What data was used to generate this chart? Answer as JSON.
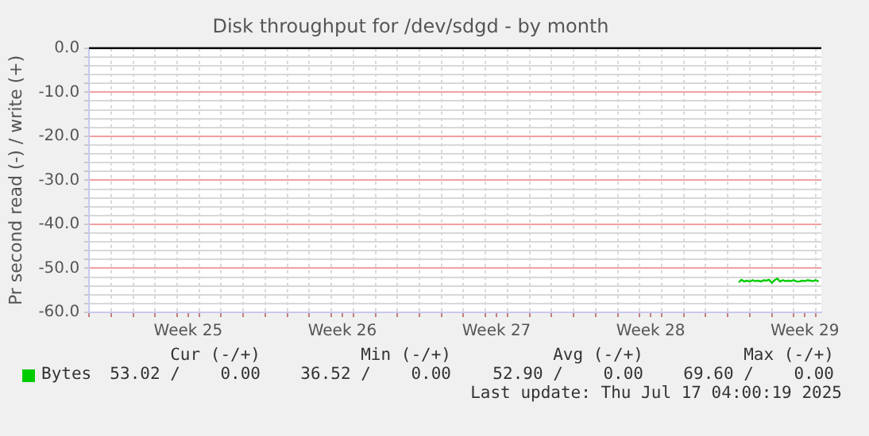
{
  "chart_data": {
    "type": "line",
    "title": "Disk throughput for /dev/sdgd - by month",
    "ylabel": "Pr second read (-) / write (+)",
    "series": [
      {
        "name": "Bytes",
        "color": "#00cc00",
        "x": [
          "2025-07-14T12:00",
          "2025-07-14T15:00",
          "2025-07-14T18:00",
          "2025-07-14T21:00",
          "2025-07-15T00:00",
          "2025-07-15T03:00",
          "2025-07-15T06:00",
          "2025-07-15T09:00",
          "2025-07-15T12:00",
          "2025-07-15T15:00",
          "2025-07-15T18:00",
          "2025-07-15T21:00",
          "2025-07-16T00:00",
          "2025-07-16T03:00",
          "2025-07-16T06:00",
          "2025-07-16T09:00",
          "2025-07-16T12:00",
          "2025-07-16T15:00",
          "2025-07-16T18:00",
          "2025-07-16T21:00",
          "2025-07-17T00:00",
          "2025-07-17T03:00",
          "2025-07-17T06:00",
          "2025-07-17T09:00",
          "2025-07-17T12:00",
          "2025-07-17T15:00",
          "2025-07-17T18:00",
          "2025-07-17T21:00",
          "2025-07-18T00:00",
          "2025-07-18T03:00"
        ],
        "values": [
          -53.2,
          -52.6,
          -53.0,
          -52.8,
          -53.0,
          -52.7,
          -52.9,
          -52.8,
          -53.0,
          -52.7,
          -52.8,
          -52.6,
          -53.3,
          -52.7,
          -52.3,
          -53.0,
          -52.7,
          -52.9,
          -52.8,
          -52.9,
          -52.7,
          -53.0,
          -53.0,
          -52.8,
          -52.9,
          -52.7,
          -52.8,
          -52.9,
          -52.7,
          -53.0
        ]
      }
    ],
    "xlim": [
      "2025-06-15T00:00",
      "2025-07-18T06:00"
    ],
    "xticks": [
      {
        "value": "2025-06-15",
        "label": null
      },
      {
        "value": "2025-06-16",
        "label": null
      },
      {
        "value": "2025-06-17",
        "label": null
      },
      {
        "value": "2025-06-18",
        "label": null
      },
      {
        "value": "2025-06-19",
        "label": null
      },
      {
        "value": "2025-06-19T12:00",
        "label": "Week 25"
      },
      {
        "value": "2025-06-20",
        "label": null
      },
      {
        "value": "2025-06-21",
        "label": null
      },
      {
        "value": "2025-06-22",
        "label": null
      },
      {
        "value": "2025-06-23",
        "label": null
      },
      {
        "value": "2025-06-24",
        "label": null
      },
      {
        "value": "2025-06-25",
        "label": null
      },
      {
        "value": "2025-06-26",
        "label": null
      },
      {
        "value": "2025-06-26T12:00",
        "label": "Week 26"
      },
      {
        "value": "2025-06-27",
        "label": null
      },
      {
        "value": "2025-06-28",
        "label": null
      },
      {
        "value": "2025-06-29",
        "label": null
      },
      {
        "value": "2025-06-30",
        "label": null
      },
      {
        "value": "2025-07-01",
        "label": null
      },
      {
        "value": "2025-07-02",
        "label": null
      },
      {
        "value": "2025-07-03",
        "label": null
      },
      {
        "value": "2025-07-03T12:00",
        "label": "Week 27"
      },
      {
        "value": "2025-07-04",
        "label": null
      },
      {
        "value": "2025-07-05",
        "label": null
      },
      {
        "value": "2025-07-06",
        "label": null
      },
      {
        "value": "2025-07-07",
        "label": null
      },
      {
        "value": "2025-07-08",
        "label": null
      },
      {
        "value": "2025-07-09",
        "label": null
      },
      {
        "value": "2025-07-10",
        "label": null
      },
      {
        "value": "2025-07-10T12:00",
        "label": "Week 28"
      },
      {
        "value": "2025-07-11",
        "label": null
      },
      {
        "value": "2025-07-12",
        "label": null
      },
      {
        "value": "2025-07-13",
        "label": null
      },
      {
        "value": "2025-07-14",
        "label": null
      },
      {
        "value": "2025-07-15",
        "label": null
      },
      {
        "value": "2025-07-16",
        "label": null
      },
      {
        "value": "2025-07-17",
        "label": null
      },
      {
        "value": "2025-07-17T12:00",
        "label": "Week 29"
      },
      {
        "value": "2025-07-18",
        "label": null
      }
    ],
    "ylim": [
      -60,
      0
    ],
    "yticks": [
      {
        "value": -60,
        "label": "-60.0"
      },
      {
        "value": -58,
        "label": null
      },
      {
        "value": -56,
        "label": null
      },
      {
        "value": -54,
        "label": null
      },
      {
        "value": -52,
        "label": null
      },
      {
        "value": -50,
        "label": "-50.0"
      },
      {
        "value": -48,
        "label": null
      },
      {
        "value": -46,
        "label": null
      },
      {
        "value": -44,
        "label": null
      },
      {
        "value": -42,
        "label": null
      },
      {
        "value": -40,
        "label": "-40.0"
      },
      {
        "value": -38,
        "label": null
      },
      {
        "value": -36,
        "label": null
      },
      {
        "value": -34,
        "label": null
      },
      {
        "value": -32,
        "label": null
      },
      {
        "value": -30,
        "label": "-30.0"
      },
      {
        "value": -28,
        "label": null
      },
      {
        "value": -26,
        "label": null
      },
      {
        "value": -24,
        "label": null
      },
      {
        "value": -22,
        "label": null
      },
      {
        "value": -20,
        "label": "-20.0"
      },
      {
        "value": -18,
        "label": null
      },
      {
        "value": -16,
        "label": null
      },
      {
        "value": -14,
        "label": null
      },
      {
        "value": -12,
        "label": null
      },
      {
        "value": -10,
        "label": "-10.0"
      },
      {
        "value": -8,
        "label": null
      },
      {
        "value": -6,
        "label": null
      },
      {
        "value": -4,
        "label": null
      },
      {
        "value": -2,
        "label": null
      },
      {
        "value": 0,
        "label": "0.0"
      }
    ],
    "ref_lines": [
      {
        "axis": "y",
        "value": 0,
        "color": "#000000"
      }
    ],
    "grid": true,
    "legend": "bottom",
    "marker": "none",
    "line_style": "solid",
    "annotations": [
      "Cur (-/+)",
      "Min (-/+)",
      "Avg (-/+)",
      "Max (-/+)",
      "53.02 /    0.00",
      "36.52 /    0.00",
      "52.90 /    0.00",
      "69.60 /    0.00",
      "Last update: Thu Jul 17 04:00:19 2025"
    ]
  }
}
